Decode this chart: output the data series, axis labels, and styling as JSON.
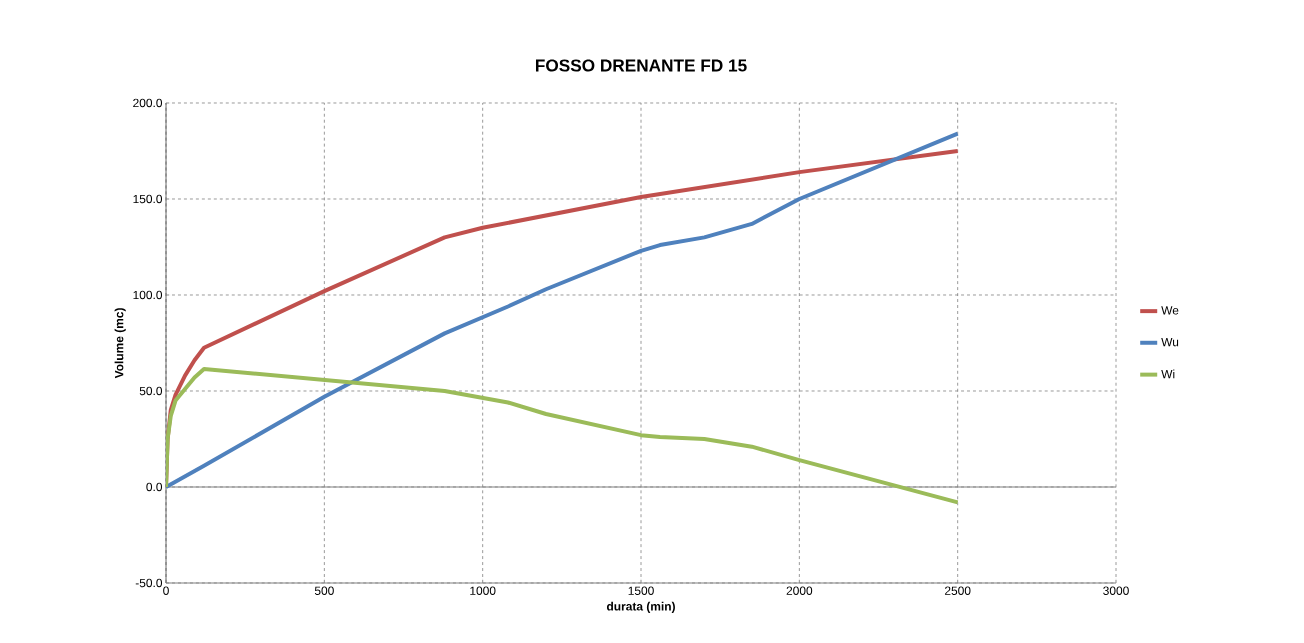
{
  "chart_data": {
    "type": "line",
    "title": "FOSSO DRENANTE FD 15",
    "xlabel": "durata (min)",
    "ylabel": "Volume (mc)",
    "xlim": [
      0,
      3000
    ],
    "xticks": [
      0,
      500,
      1000,
      1500,
      2000,
      2500,
      3000
    ],
    "ylim": [
      -50,
      200
    ],
    "yticks": [
      {
        "value": -50,
        "label": "-50.0"
      },
      {
        "value": 0,
        "label": "0.0"
      },
      {
        "value": 50,
        "label": "50.0"
      },
      {
        "value": 100,
        "label": "100.0"
      },
      {
        "value": 150,
        "label": "150.0"
      },
      {
        "value": 200,
        "label": "200.0"
      }
    ],
    "grid": true,
    "legend": "right",
    "line_style": "solid",
    "marker": "none",
    "series": [
      {
        "name": "We",
        "color": "#c0504d",
        "x": [
          0,
          5,
          15,
          30,
          60,
          90,
          120,
          500,
          880,
          1000,
          1500,
          2000,
          2500
        ],
        "values": [
          0,
          25,
          40,
          48,
          58,
          66,
          72.5,
          102,
          130,
          135,
          151,
          164,
          175
        ]
      },
      {
        "name": "Wu",
        "color": "#4f81bd",
        "x": [
          0,
          120,
          500,
          880,
          1080,
          1200,
          1500,
          1560,
          1700,
          1850,
          2000,
          2500
        ],
        "values": [
          0,
          11,
          47,
          80,
          94,
          103,
          123,
          126,
          130,
          137,
          150,
          184
        ]
      },
      {
        "name": "Wi",
        "color": "#9bbb59",
        "x": [
          0,
          5,
          15,
          30,
          60,
          90,
          120,
          880,
          1080,
          1200,
          1500,
          1560,
          1700,
          1850,
          2000,
          2500
        ],
        "values": [
          0,
          25,
          37,
          45,
          51,
          57,
          61.5,
          50,
          44,
          38,
          27,
          26,
          25,
          21,
          14,
          -8
        ]
      }
    ]
  }
}
